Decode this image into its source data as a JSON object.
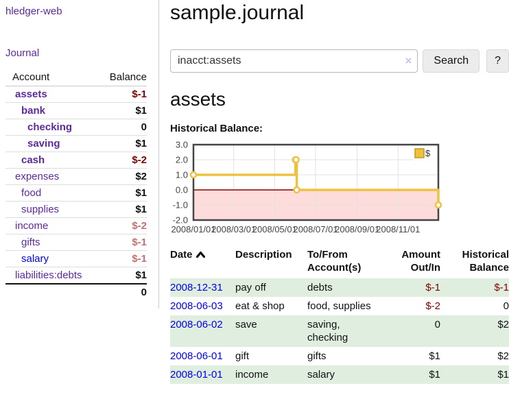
{
  "app": {
    "title": "hledger-web"
  },
  "sidebar": {
    "journal_link": "Journal",
    "accounts": {
      "header_account": "Account",
      "header_balance": "Balance",
      "rows": [
        {
          "account": "assets",
          "balance": "$-1",
          "level": 1,
          "bold": true,
          "balance_style": "negative",
          "link_color": "purple"
        },
        {
          "account": "bank",
          "balance": "$1",
          "level": 2,
          "bold": true,
          "balance_style": "normal",
          "link_color": "purple"
        },
        {
          "account": "checking",
          "balance": "0",
          "level": 3,
          "bold": true,
          "balance_style": "normal",
          "link_color": "purple"
        },
        {
          "account": "saving",
          "balance": "$1",
          "level": 3,
          "bold": true,
          "balance_style": "normal",
          "link_color": "purple"
        },
        {
          "account": "cash",
          "balance": "$-2",
          "level": 2,
          "bold": true,
          "balance_style": "negative",
          "link_color": "purple"
        },
        {
          "account": "expenses",
          "balance": "$2",
          "level": 1,
          "bold": false,
          "balance_style": "normal",
          "link_color": "purple"
        },
        {
          "account": "food",
          "balance": "$1",
          "level": 2,
          "bold": false,
          "balance_style": "normal",
          "link_color": "purple"
        },
        {
          "account": "supplies",
          "balance": "$1",
          "level": 2,
          "bold": false,
          "balance_style": "normal",
          "link_color": "purple"
        },
        {
          "account": "income",
          "balance": "$-2",
          "level": 1,
          "bold": false,
          "balance_style": "negative-dim",
          "link_color": "purple"
        },
        {
          "account": "gifts",
          "balance": "$-1",
          "level": 2,
          "bold": false,
          "balance_style": "negative-dim",
          "link_color": "purple"
        },
        {
          "account": "salary",
          "balance": "$-1",
          "level": 2,
          "bold": false,
          "balance_style": "negative-dim",
          "link_color": "blue"
        },
        {
          "account": "liabilities:debts",
          "balance": "$1",
          "level": 1,
          "bold": false,
          "balance_style": "normal",
          "link_color": "purple"
        }
      ],
      "total": "0"
    }
  },
  "main": {
    "title": "sample.journal",
    "search": {
      "value": "inacct:assets",
      "clear_icon": "×",
      "search_button": "Search",
      "help_button": "?"
    },
    "account_heading": "assets",
    "chart_title": "Historical Balance:"
  },
  "chart_data": {
    "type": "line",
    "steps": true,
    "title": "Historical Balance of assets",
    "legend_label": "$",
    "legend_position": "top-right",
    "grid": true,
    "x_range": [
      "2008-01-01",
      "2008-12-31"
    ],
    "ylim": [
      -2,
      3
    ],
    "y_ticks": [
      "3.0",
      "2.0",
      "1.0",
      "0.0",
      "-1.0",
      "-2.0"
    ],
    "x_ticks": [
      "2008/01/01",
      "2008/03/01",
      "2008/05/01",
      "2008/07/01",
      "2008/09/01",
      "2008/11/01"
    ],
    "series": [
      {
        "name": "$",
        "points": [
          [
            "2008-01-01",
            1
          ],
          [
            "2008-06-01",
            2
          ],
          [
            "2008-06-02",
            2
          ],
          [
            "2008-06-03",
            0
          ],
          [
            "2008-12-31",
            -1
          ]
        ]
      }
    ],
    "colors": {
      "line": "#edc240",
      "marker_fill": "#ffffff",
      "negative_region": "#ffdcdc",
      "zero_line": "#8b0000",
      "border": "#444444",
      "gridline": "#e2e2e2",
      "legend_square_border": "#c0991c",
      "axis_text": "#444444"
    }
  },
  "register": {
    "headers": [
      "Date",
      "Description",
      "To/From Account(s)",
      "Amount Out/In",
      "Historical Balance"
    ],
    "sort_icon": "chevron-up",
    "rows": [
      {
        "date": "2008-12-31",
        "description": "pay off",
        "accounts": "debts",
        "amount": "$-1",
        "balance": "$-1"
      },
      {
        "date": "2008-06-03",
        "description": "eat & shop",
        "accounts": "food, supplies",
        "amount": "$-2",
        "balance": "0"
      },
      {
        "date": "2008-06-02",
        "description": "save",
        "accounts": "saving, checking",
        "amount": "0",
        "balance": "$2"
      },
      {
        "date": "2008-06-01",
        "description": "gift",
        "accounts": "gifts",
        "amount": "$1",
        "balance": "$2"
      },
      {
        "date": "2008-01-01",
        "description": "income",
        "accounts": "salary",
        "amount": "$1",
        "balance": "$1"
      }
    ]
  },
  "colors": {
    "link_purple": "#5b2a9b",
    "link_blue": "#0000e8",
    "negative": "#7f0000",
    "negative_dim": "#c56f6f",
    "row_stripe_green": "#e0eee0"
  }
}
